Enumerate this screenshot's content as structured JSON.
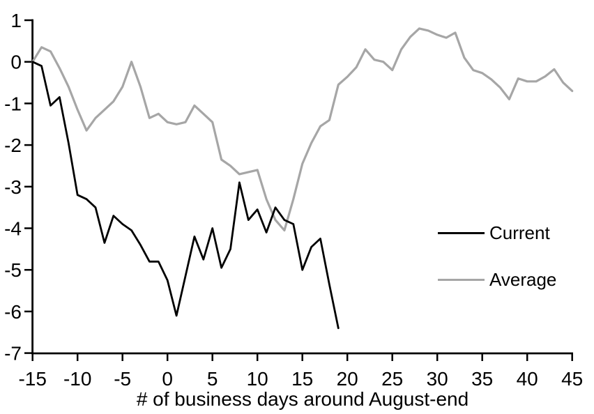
{
  "chart_data": {
    "type": "line",
    "title": "",
    "xlabel": "# of business days around August-end",
    "ylabel": "",
    "xlim": [
      -15,
      45
    ],
    "ylim": [
      -7,
      1
    ],
    "xticks": [
      -15,
      -10,
      -5,
      0,
      5,
      10,
      15,
      20,
      25,
      30,
      35,
      40,
      45
    ],
    "yticks": [
      1,
      0,
      -1,
      -2,
      -3,
      -4,
      -5,
      -6,
      -7
    ],
    "grid": false,
    "legend_position": "middle-right",
    "axis_color": "#000000",
    "series": [
      {
        "name": "Average",
        "color": "#a6a6a6",
        "x_start": -15,
        "x_step": 1,
        "values": [
          0.0,
          0.35,
          0.25,
          -0.15,
          -0.6,
          -1.15,
          -1.65,
          -1.35,
          -1.15,
          -0.95,
          -0.6,
          0.0,
          -0.6,
          -1.35,
          -1.25,
          -1.45,
          -1.5,
          -1.45,
          -1.05,
          -1.25,
          -1.45,
          -2.35,
          -2.5,
          -2.7,
          -2.65,
          -2.6,
          -3.3,
          -3.8,
          -4.05,
          -3.3,
          -2.45,
          -1.95,
          -1.55,
          -1.4,
          -0.55,
          -0.36,
          -0.13,
          0.3,
          0.05,
          0.0,
          -0.2,
          0.3,
          0.6,
          0.8,
          0.75,
          0.65,
          0.58,
          0.7,
          0.1,
          -0.2,
          -0.27,
          -0.42,
          -0.62,
          -0.9,
          -0.4,
          -0.47,
          -0.47,
          -0.35,
          -0.18,
          -0.5,
          -0.7
        ]
      },
      {
        "name": "Current",
        "color": "#000000",
        "x_start": -15,
        "x_step": 1,
        "values": [
          0.0,
          -0.1,
          -1.05,
          -0.85,
          -1.95,
          -3.2,
          -3.3,
          -3.5,
          -4.35,
          -3.7,
          -3.9,
          -4.05,
          -4.4,
          -4.8,
          -4.8,
          -5.25,
          -6.1,
          -5.15,
          -4.2,
          -4.75,
          -4.0,
          -4.95,
          -4.5,
          -2.9,
          -3.8,
          -3.55,
          -4.1,
          -3.5,
          -3.8,
          -3.9,
          -5.0,
          -4.45,
          -4.25,
          -5.35,
          -6.4
        ]
      }
    ]
  }
}
